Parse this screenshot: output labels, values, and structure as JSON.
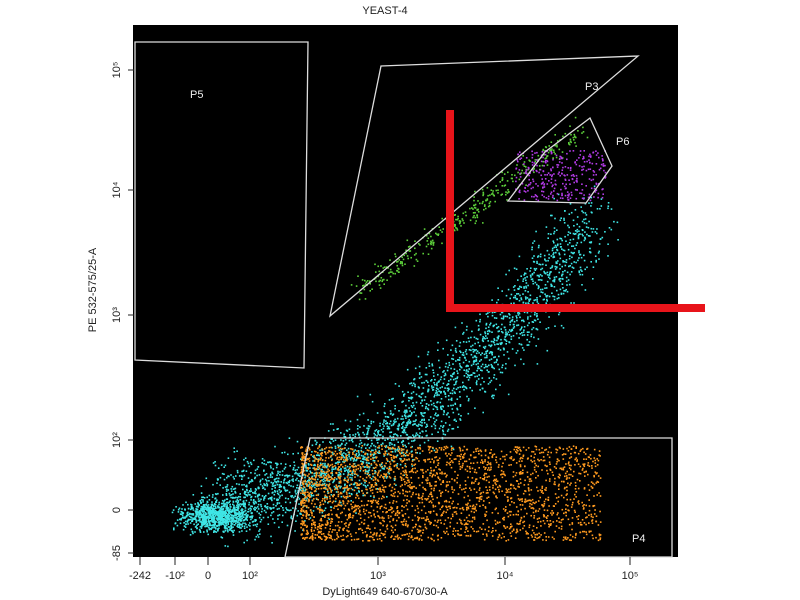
{
  "title": "YEAST-4",
  "y_axis": {
    "label": "PE 532-575/25-A",
    "ticks": [
      "10⁵",
      "10⁴",
      "10³",
      "10²",
      "0",
      "-85"
    ]
  },
  "x_axis": {
    "label": "DyLight649 640-670/30-A",
    "ticks": [
      "-242",
      "-10²",
      "0",
      "10²",
      "10³",
      "10⁴",
      "10⁵"
    ]
  },
  "gates": [
    {
      "label": "P5"
    },
    {
      "label": "P3"
    },
    {
      "label": "P6"
    },
    {
      "label": "P4"
    }
  ]
}
